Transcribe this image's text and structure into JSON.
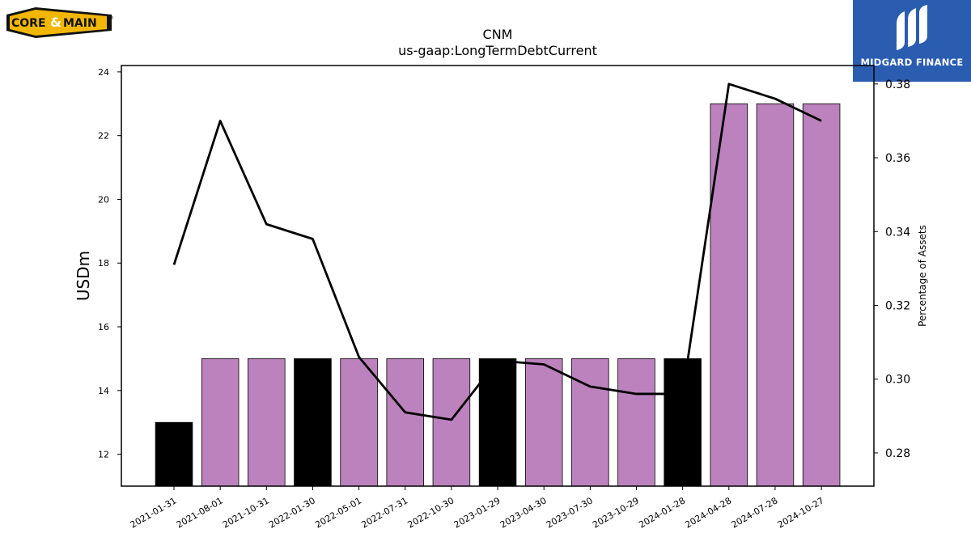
{
  "company_logo": {
    "text_left": "CORE",
    "text_amp": "&",
    "text_right": "MAIN",
    "registered": "®"
  },
  "brand": {
    "name": "MIDGARD FINANCE"
  },
  "chart_data": {
    "type": "bar",
    "title": "CNM",
    "subtitle": "us-gaap:LongTermDebtCurrent",
    "ylabel": "USDm",
    "y2label": "Percentage of Assets",
    "ylim": [
      11,
      24.2
    ],
    "y2lim": [
      0.271,
      0.385
    ],
    "yticks": [
      12,
      14,
      16,
      18,
      20,
      22,
      24
    ],
    "y2ticks": [
      "0.28",
      "0.30",
      "0.32",
      "0.34",
      "0.36",
      "0.38"
    ],
    "categories": [
      "2021-01-31",
      "2021-08-01",
      "2021-10-31",
      "2022-01-30",
      "2022-05-01",
      "2022-07-31",
      "2022-10-30",
      "2023-01-29",
      "2023-04-30",
      "2023-07-30",
      "2023-10-29",
      "2024-01-28",
      "2024-04-28",
      "2024-07-28",
      "2024-10-27"
    ],
    "series": [
      {
        "type": "bar",
        "values": [
          13,
          15,
          15,
          15,
          15,
          15,
          15,
          15,
          15,
          15,
          15,
          15,
          23,
          23,
          23
        ]
      },
      {
        "type": "line",
        "axis": "right",
        "values": [
          0.331,
          0.37,
          0.342,
          0.338,
          0.306,
          0.291,
          0.289,
          0.305,
          0.304,
          0.298,
          0.296,
          0.296,
          0.38,
          0.376,
          0.37
        ]
      }
    ],
    "bar_colors": [
      "#000000",
      "#bc82bd",
      "#bc82bd",
      "#000000",
      "#bc82bd",
      "#bc82bd",
      "#bc82bd",
      "#000000",
      "#bc82bd",
      "#bc82bd",
      "#bc82bd",
      "#000000",
      "#bc82bd",
      "#bc82bd",
      "#bc82bd"
    ],
    "line_color": "#000000",
    "grid": false
  }
}
